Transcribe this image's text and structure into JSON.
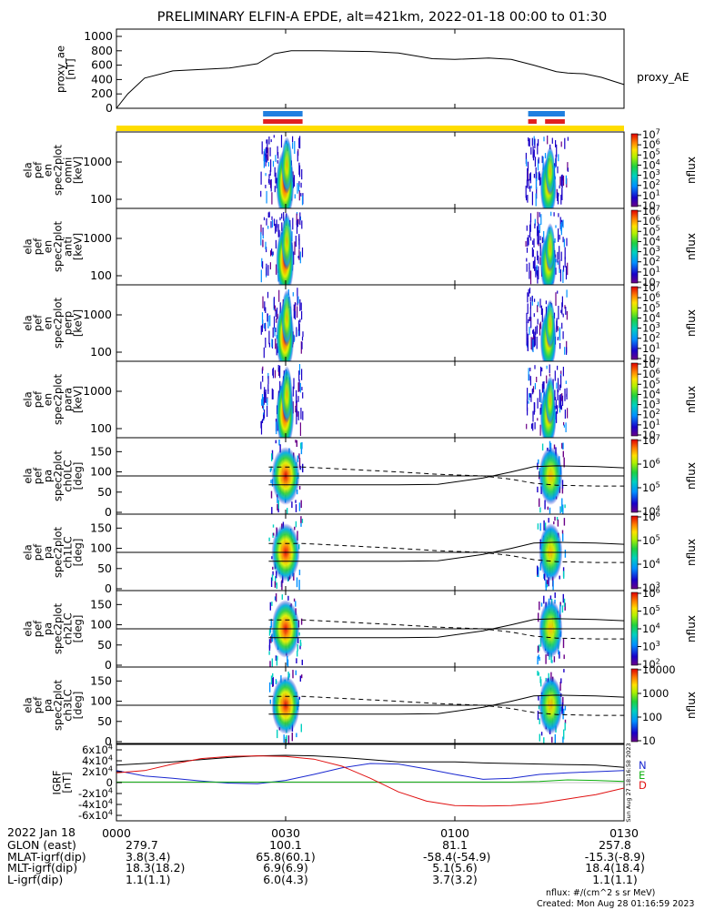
{
  "chart_data": {
    "type": "spectrogram",
    "title": "PRELIMINARY ELFIN-A EPDE, alt=421km, 2022-01-18 00:00 to 01:30",
    "time_range": [
      "2022-01-18 00:00",
      "2022-01-18 01:30"
    ],
    "time_ticks": [
      "0000",
      "0030",
      "0100",
      "0130"
    ],
    "proxy_ae": {
      "ylabel": "proxy_ae [nT]",
      "legend": "proxy_AE",
      "ylim": [
        0,
        1000
      ],
      "yticks": [
        "0",
        "200",
        "400",
        "600",
        "800",
        "1000"
      ],
      "x_min": [
        0,
        2,
        5,
        10,
        20,
        25,
        28,
        31,
        36,
        45,
        50,
        56,
        60,
        66,
        70,
        74,
        78,
        80,
        83,
        86,
        88,
        90
      ],
      "values": [
        0,
        200,
        420,
        520,
        560,
        620,
        760,
        800,
        800,
        790,
        770,
        690,
        680,
        700,
        680,
        600,
        510,
        490,
        480,
        430,
        380,
        330
      ]
    },
    "science_zone_bars": {
      "blue_min": [
        [
          26,
          33
        ],
        [
          73,
          79.5
        ]
      ],
      "red_min": [
        [
          26,
          33
        ],
        [
          73,
          74.5
        ],
        [
          76,
          79.5
        ]
      ]
    },
    "energy_panels": [
      {
        "ylabel": [
          "ela",
          "pef",
          "en",
          "spec2plot",
          "omni",
          "[keV]"
        ],
        "cbar_ticks": [
          "10",
          "10^1",
          "10^2",
          "10^3",
          "10^4",
          "10^5",
          "10^6",
          "10^7"
        ],
        "cbar_label": "nflux",
        "yticks": [
          "100",
          "1000"
        ]
      },
      {
        "ylabel": [
          "ela",
          "pef",
          "en",
          "spec2plot",
          "anti",
          "[keV]"
        ],
        "cbar_ticks": [
          "10",
          "10^1",
          "10^2",
          "10^3",
          "10^4",
          "10^5",
          "10^6",
          "10^7"
        ],
        "cbar_label": "nflux",
        "yticks": [
          "100",
          "1000"
        ]
      },
      {
        "ylabel": [
          "ela",
          "pef",
          "en",
          "spec2plot",
          "perp",
          "[keV]"
        ],
        "cbar_ticks": [
          "10",
          "10^1",
          "10^2",
          "10^3",
          "10^4",
          "10^5",
          "10^6",
          "10^7"
        ],
        "cbar_label": "nflux",
        "yticks": [
          "100",
          "1000"
        ]
      },
      {
        "ylabel": [
          "ela",
          "pef",
          "en",
          "spec2plot",
          "para",
          "[keV]"
        ],
        "cbar_ticks": [
          "10",
          "10^1",
          "10^2",
          "10^3",
          "10^4",
          "10^5",
          "10^6",
          "10^7"
        ],
        "cbar_label": "nflux",
        "yticks": [
          "100",
          "1000"
        ]
      }
    ],
    "pitch_panels": [
      {
        "ylabel": [
          "ela",
          "pef",
          "pa",
          "spec2plot",
          "ch0LC",
          "[deg]"
        ],
        "cbar_ticks": [
          "10^4",
          "10^5",
          "10^6",
          "10^7"
        ],
        "cbar_label": "nflux",
        "yticks": [
          "0",
          "50",
          "100",
          "150"
        ]
      },
      {
        "ylabel": [
          "ela",
          "pef",
          "pa",
          "spec2plot",
          "ch1LC",
          "[deg]"
        ],
        "cbar_ticks": [
          "10^3",
          "10^4",
          "10^5",
          "10^6"
        ],
        "cbar_label": "nflux",
        "yticks": [
          "0",
          "50",
          "100",
          "150"
        ]
      },
      {
        "ylabel": [
          "ela",
          "pef",
          "pa",
          "spec2plot",
          "ch2LC",
          "[deg]"
        ],
        "cbar_ticks": [
          "10^2",
          "10^3",
          "10^4",
          "10^5",
          "10^6"
        ],
        "cbar_label": "nflux",
        "yticks": [
          "0",
          "50",
          "100",
          "150"
        ]
      },
      {
        "ylabel": [
          "ela",
          "pef",
          "pa",
          "spec2plot",
          "ch3LC",
          "[deg]"
        ],
        "cbar_ticks": [
          "10",
          "100",
          "1000",
          "10000"
        ],
        "cbar_label": "nflux",
        "yticks": [
          "0",
          "50",
          "100",
          "150"
        ]
      }
    ],
    "loss_cone": {
      "x_min": [
        0,
        15,
        27,
        33,
        50,
        57,
        65,
        70,
        74,
        78,
        85,
        90
      ],
      "solid": [
        null,
        null,
        68,
        68,
        68,
        69,
        85,
        100,
        113,
        115,
        113,
        110
      ],
      "dashed": [
        null,
        null,
        112,
        112,
        100,
        94,
        90,
        82,
        72,
        67,
        65,
        65
      ]
    },
    "igrf": {
      "ylabel": [
        "IGRF",
        "[nT]"
      ],
      "yticks": [
        "6x10^4",
        "4x10^4",
        "2x10^4",
        "0",
        "-2x10^4",
        "-4x10^4",
        "-6x10^4"
      ],
      "ylim": [
        -70000,
        70000
      ],
      "legend": [
        "N",
        "E",
        "D"
      ],
      "side_text": "Sun Aug 27 18:16:58 2023",
      "x_min": [
        0,
        5,
        10,
        15,
        20,
        25,
        30,
        35,
        40,
        45,
        50,
        55,
        60,
        65,
        70,
        75,
        80,
        85,
        90
      ],
      "N": [
        32000,
        35000,
        38000,
        42000,
        46000,
        49000,
        50000,
        49000,
        46000,
        42000,
        38000,
        38000,
        38000,
        36000,
        35000,
        34000,
        33000,
        32000,
        28000
      ],
      "E": [
        22000,
        12000,
        8000,
        3000,
        -1000,
        -2000,
        4000,
        15000,
        27000,
        35000,
        34000,
        25000,
        15000,
        6000,
        8000,
        15000,
        18000,
        20000,
        22000
      ],
      "D": [
        18000,
        22000,
        34000,
        44000,
        48000,
        49000,
        48000,
        43000,
        30000,
        8000,
        -17000,
        -34000,
        -42000,
        -43000,
        -42000,
        -38000,
        -30000,
        -22000,
        -10000
      ],
      "green": [
        1000,
        1000,
        1000,
        1000,
        1000,
        1000,
        1000,
        1000,
        1000,
        1000,
        1000,
        1000,
        1000,
        1000,
        1000,
        2000,
        5000,
        4000,
        2000
      ]
    }
  },
  "footer": {
    "date_label": "2022 Jan 18",
    "rows": [
      {
        "label": "GLON (east)",
        "values": [
          "279.7",
          "100.1",
          "81.1",
          "257.8"
        ]
      },
      {
        "label": "MLAT-igrf(dip)",
        "values": [
          "3.8(3.4)",
          "65.8(60.1)",
          "-58.4(-54.9)",
          "-15.3(-8.9)"
        ]
      },
      {
        "label": "MLT-igrf(dip)",
        "values": [
          "18.3(18.2)",
          "6.9(6.9)",
          "5.1(5.6)",
          "18.4(18.4)"
        ]
      },
      {
        "label": "L-igrf(dip)",
        "values": [
          "1.1(1.1)",
          "6.0(4.3)",
          "3.7(3.2)",
          "1.1(1.1)"
        ]
      }
    ],
    "units_note": "nflux: #/(cm^2 s sr MeV)",
    "created_note": "Created: Mon Aug 28 01:16:59 2023"
  },
  "colors": {
    "yellow_bar": "#ffdd00",
    "blue_bar": "#1f7fe0",
    "red_bar": "#e02020"
  }
}
